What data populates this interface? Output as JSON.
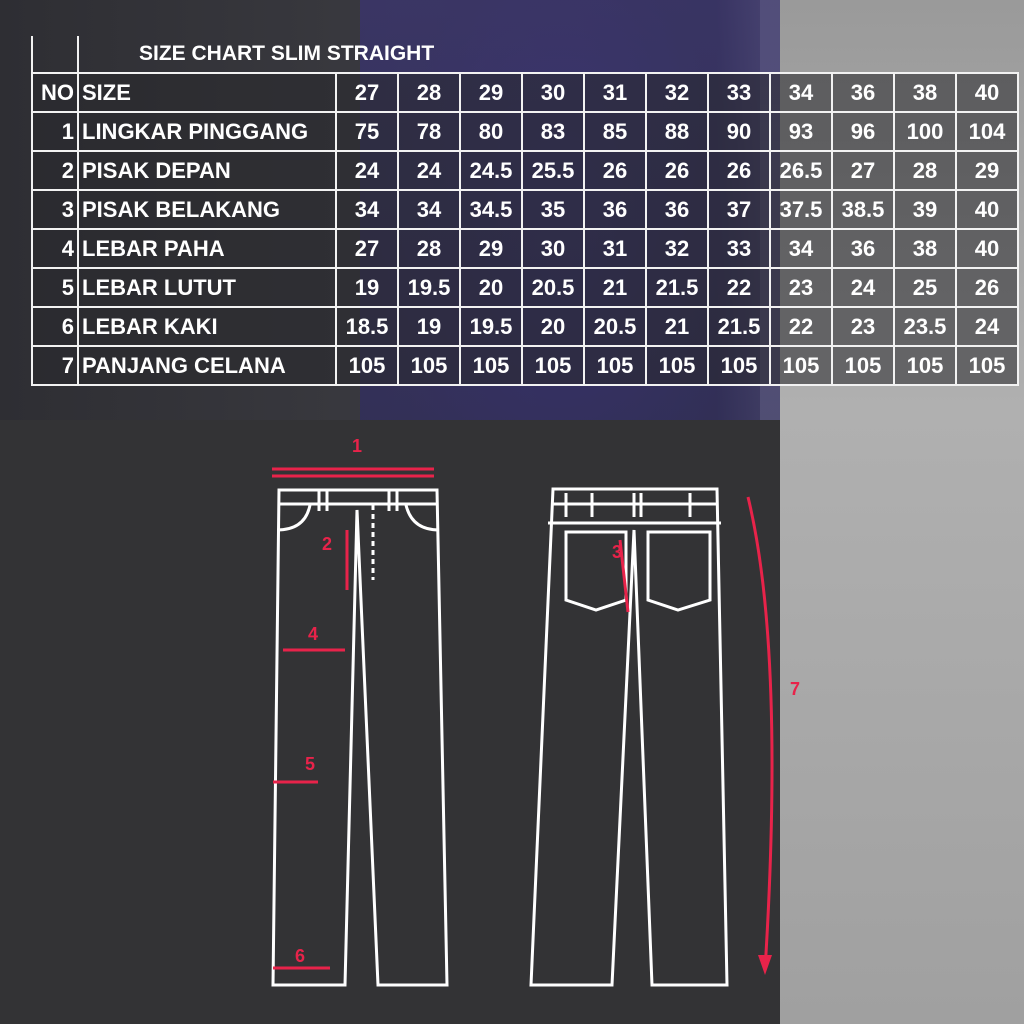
{
  "chart_data": {
    "type": "table",
    "title": "SIZE CHART SLIM STRAIGHT",
    "header": {
      "no": "NO",
      "label": "SIZE",
      "sizes": [
        "27",
        "28",
        "29",
        "30",
        "31",
        "32",
        "33",
        "34",
        "36",
        "38",
        "40"
      ]
    },
    "rows": [
      {
        "no": "1",
        "label": "LINGKAR PINGGANG",
        "values": [
          "75",
          "78",
          "80",
          "83",
          "85",
          "88",
          "90",
          "93",
          "96",
          "100",
          "104"
        ]
      },
      {
        "no": "2",
        "label": "PISAK DEPAN",
        "values": [
          "24",
          "24",
          "24.5",
          "25.5",
          "26",
          "26",
          "26",
          "26.5",
          "27",
          "28",
          "29"
        ]
      },
      {
        "no": "3",
        "label": "PISAK BELAKANG",
        "values": [
          "34",
          "34",
          "34.5",
          "35",
          "36",
          "36",
          "37",
          "37.5",
          "38.5",
          "39",
          "40"
        ]
      },
      {
        "no": "4",
        "label": "LEBAR PAHA",
        "values": [
          "27",
          "28",
          "29",
          "30",
          "31",
          "32",
          "33",
          "34",
          "36",
          "38",
          "40"
        ]
      },
      {
        "no": "5",
        "label": "LEBAR LUTUT",
        "values": [
          "19",
          "19.5",
          "20",
          "20.5",
          "21",
          "21.5",
          "22",
          "23",
          "24",
          "25",
          "26"
        ]
      },
      {
        "no": "6",
        "label": "LEBAR KAKI",
        "values": [
          "18.5",
          "19",
          "19.5",
          "20",
          "20.5",
          "21",
          "21.5",
          "22",
          "23",
          "23.5",
          "24"
        ]
      },
      {
        "no": "7",
        "label": "PANJANG CELANA",
        "values": [
          "105",
          "105",
          "105",
          "105",
          "105",
          "105",
          "105",
          "105",
          "105",
          "105",
          "105"
        ]
      }
    ]
  },
  "diagram": {
    "markers": [
      "1",
      "2",
      "3",
      "4",
      "5",
      "6",
      "7"
    ],
    "marker_color": "#e8234a",
    "outline_color": "#ffffff"
  }
}
